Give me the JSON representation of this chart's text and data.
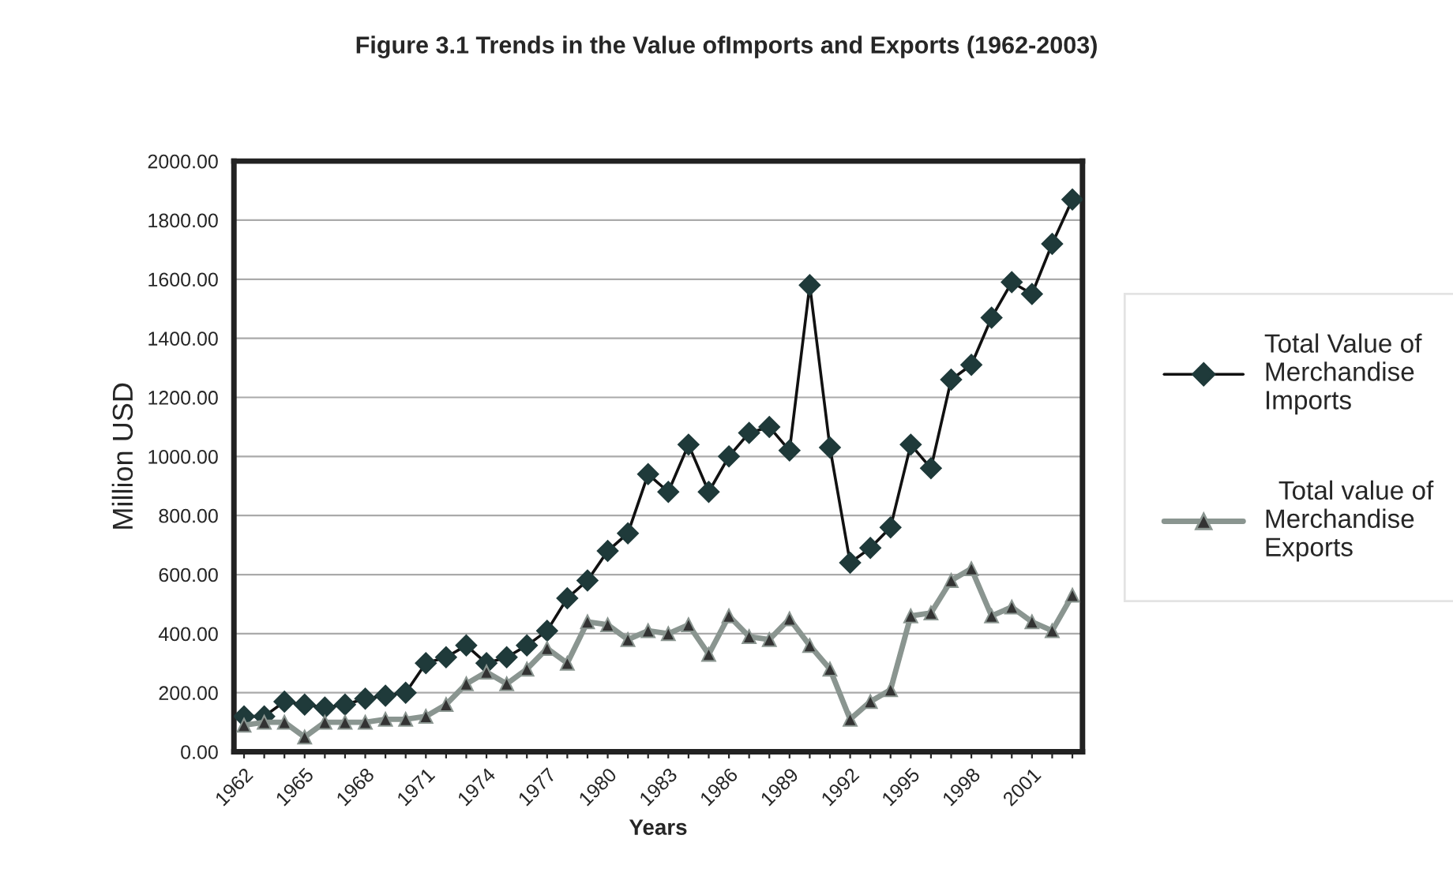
{
  "chart_data": {
    "type": "line",
    "title": "Figure 3.1 Trends in the Value ofImports and Exports (1962-2003)",
    "xlabel": "Years",
    "ylabel": "Million USD",
    "categories": [
      "1962",
      null,
      null,
      "1965",
      null,
      null,
      "1968",
      null,
      null,
      "1971",
      null,
      null,
      "1974",
      null,
      null,
      "1977",
      null,
      null,
      "1980",
      null,
      null,
      "1983",
      null,
      null,
      "1986",
      null,
      null,
      "1989",
      null,
      null,
      "1992",
      null,
      null,
      "1995",
      null,
      null,
      "1998",
      null,
      null,
      "2001",
      null,
      null
    ],
    "series": [
      {
        "name": "Total Value of\nMerchandise\nImports",
        "color": "#1f3a3a",
        "marker": "diamond",
        "values": [
          120,
          120,
          170,
          160,
          150,
          160,
          180,
          190,
          200,
          300,
          320,
          360,
          300,
          320,
          360,
          410,
          520,
          580,
          680,
          740,
          940,
          880,
          1040,
          880,
          1000,
          1080,
          1100,
          1020,
          1580,
          1030,
          640,
          690,
          760,
          1040,
          960,
          1260,
          1310,
          1470,
          1590,
          1550,
          1720,
          1870
        ]
      },
      {
        "name": "  Total value of\nMerchandise\nExports",
        "color": "#8a9590",
        "marker": "triangle",
        "values": [
          90,
          100,
          100,
          50,
          100,
          100,
          100,
          110,
          110,
          120,
          160,
          230,
          270,
          230,
          280,
          350,
          300,
          440,
          430,
          380,
          410,
          400,
          430,
          330,
          460,
          390,
          380,
          450,
          360,
          280,
          110,
          170,
          210,
          460,
          470,
          580,
          620,
          460,
          490,
          440,
          410,
          530
        ]
      }
    ],
    "ylim": [
      0,
      2000
    ],
    "yticks": [
      {
        "value": 0,
        "label": "0.00"
      },
      {
        "value": 200,
        "label": "200.00"
      },
      {
        "value": 400,
        "label": "400.00"
      },
      {
        "value": 600,
        "label": "600.00"
      },
      {
        "value": 800,
        "label": "800.00"
      },
      {
        "value": 1000,
        "label": "1000.00"
      },
      {
        "value": 1200,
        "label": "1200.00"
      },
      {
        "value": 1400,
        "label": "1400.00"
      },
      {
        "value": 1600,
        "label": "1600.00"
      },
      {
        "value": 1800,
        "label": "1800.00"
      },
      {
        "value": 2000,
        "label": "2000.00"
      }
    ],
    "grid": "y",
    "legend": "right",
    "line_style": "solid"
  }
}
